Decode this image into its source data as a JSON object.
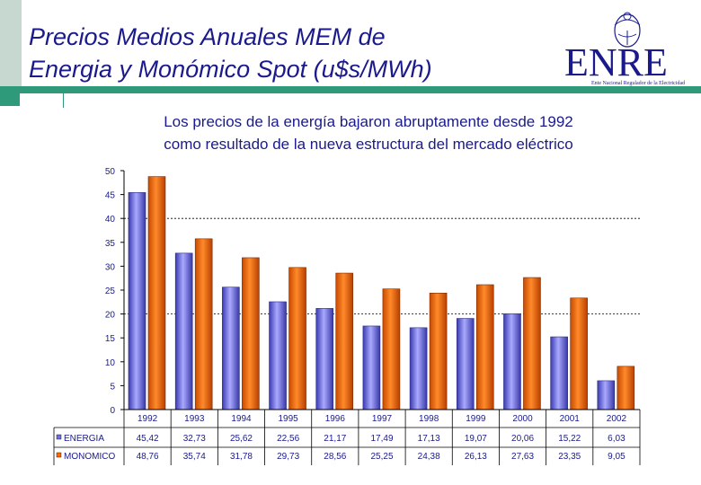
{
  "header": {
    "title_line1": "Precios Medios Anuales MEM de",
    "title_line2": "Energia y Monómico Spot (u$s/MWh)"
  },
  "logo": {
    "text": "ENRE",
    "tagline": "Ente Nacional Regulador de la Electricidad"
  },
  "subtitle": {
    "line1": "Los precios de la energía bajaron abruptamente desde 1992",
    "line2": "como resultado de la nueva estructura del mercado eléctrico"
  },
  "colors": {
    "title": "#1a1a8c",
    "energia": "#7070e0",
    "monomico": "#ff6a00",
    "accent": "#2f9a7a"
  },
  "chart_data": {
    "type": "bar",
    "categories": [
      "1992",
      "1993",
      "1994",
      "1995",
      "1996",
      "1997",
      "1998",
      "1999",
      "2000",
      "2001",
      "2002"
    ],
    "series": [
      {
        "name": "ENERGIA",
        "values": [
          45.42,
          32.73,
          25.62,
          22.56,
          21.17,
          17.49,
          17.13,
          19.07,
          20.06,
          15.22,
          6.03
        ],
        "labels": [
          "45,42",
          "32,73",
          "25,62",
          "22,56",
          "21,17",
          "17,49",
          "17,13",
          "19,07",
          "20,06",
          "15,22",
          "6,03"
        ]
      },
      {
        "name": "MONOMICO",
        "values": [
          48.76,
          35.74,
          31.78,
          29.73,
          28.56,
          25.25,
          24.38,
          26.13,
          27.63,
          23.35,
          9.05
        ],
        "labels": [
          "48,76",
          "35,74",
          "31,78",
          "29,73",
          "28,56",
          "25,25",
          "24,38",
          "26,13",
          "27,63",
          "23,35",
          "9,05"
        ]
      }
    ],
    "ylim": [
      0,
      50
    ],
    "yticks": [
      0,
      5,
      10,
      15,
      20,
      25,
      30,
      35,
      40,
      45,
      50
    ],
    "gridlines_at": [
      20,
      40
    ],
    "legend": "data table below chart"
  }
}
